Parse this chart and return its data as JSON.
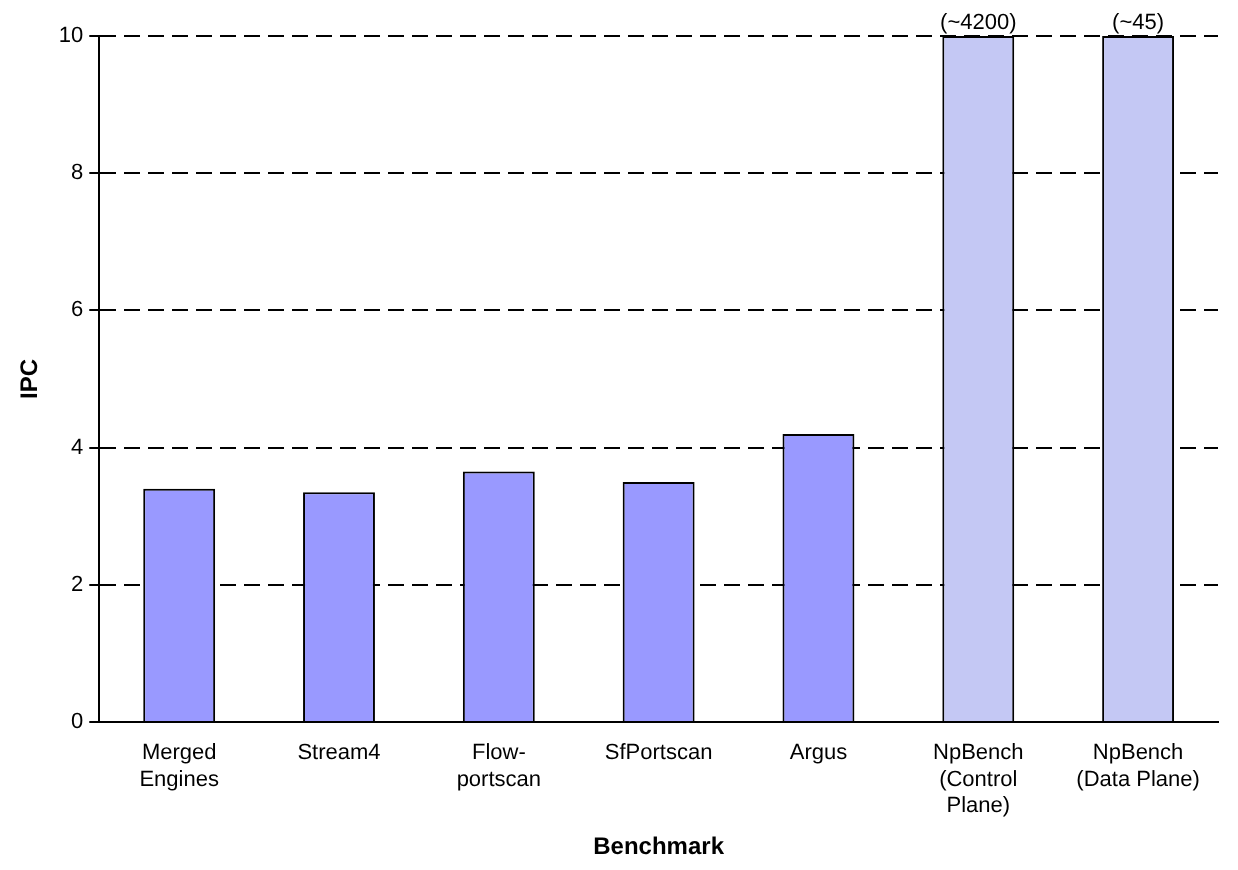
{
  "chart_data": {
    "type": "bar",
    "xlabel": "Benchmark",
    "ylabel": "IPC",
    "categories": [
      "Merged Engines",
      "Stream4",
      "Flow-portscan",
      "SfPortscan",
      "Argus",
      "NpBench (Control Plane)",
      "NpBench (Data Plane)"
    ],
    "values": [
      3.4,
      3.35,
      3.65,
      3.5,
      4.2,
      10,
      10
    ],
    "colors": [
      "#9999ff",
      "#9999ff",
      "#9999ff",
      "#9999ff",
      "#9999ff",
      "#c4c8f4",
      "#c4c8f4"
    ],
    "ylim": [
      0,
      10
    ],
    "yticks": [
      0,
      2,
      4,
      6,
      8,
      10
    ],
    "grid": "y",
    "legend": false,
    "annotations": [
      {
        "text": "(~4200)",
        "x": "NpBench (Control Plane)",
        "y": 10
      },
      {
        "text": "(~45)",
        "x": "NpBench (Data Plane)",
        "y": 10
      }
    ]
  }
}
